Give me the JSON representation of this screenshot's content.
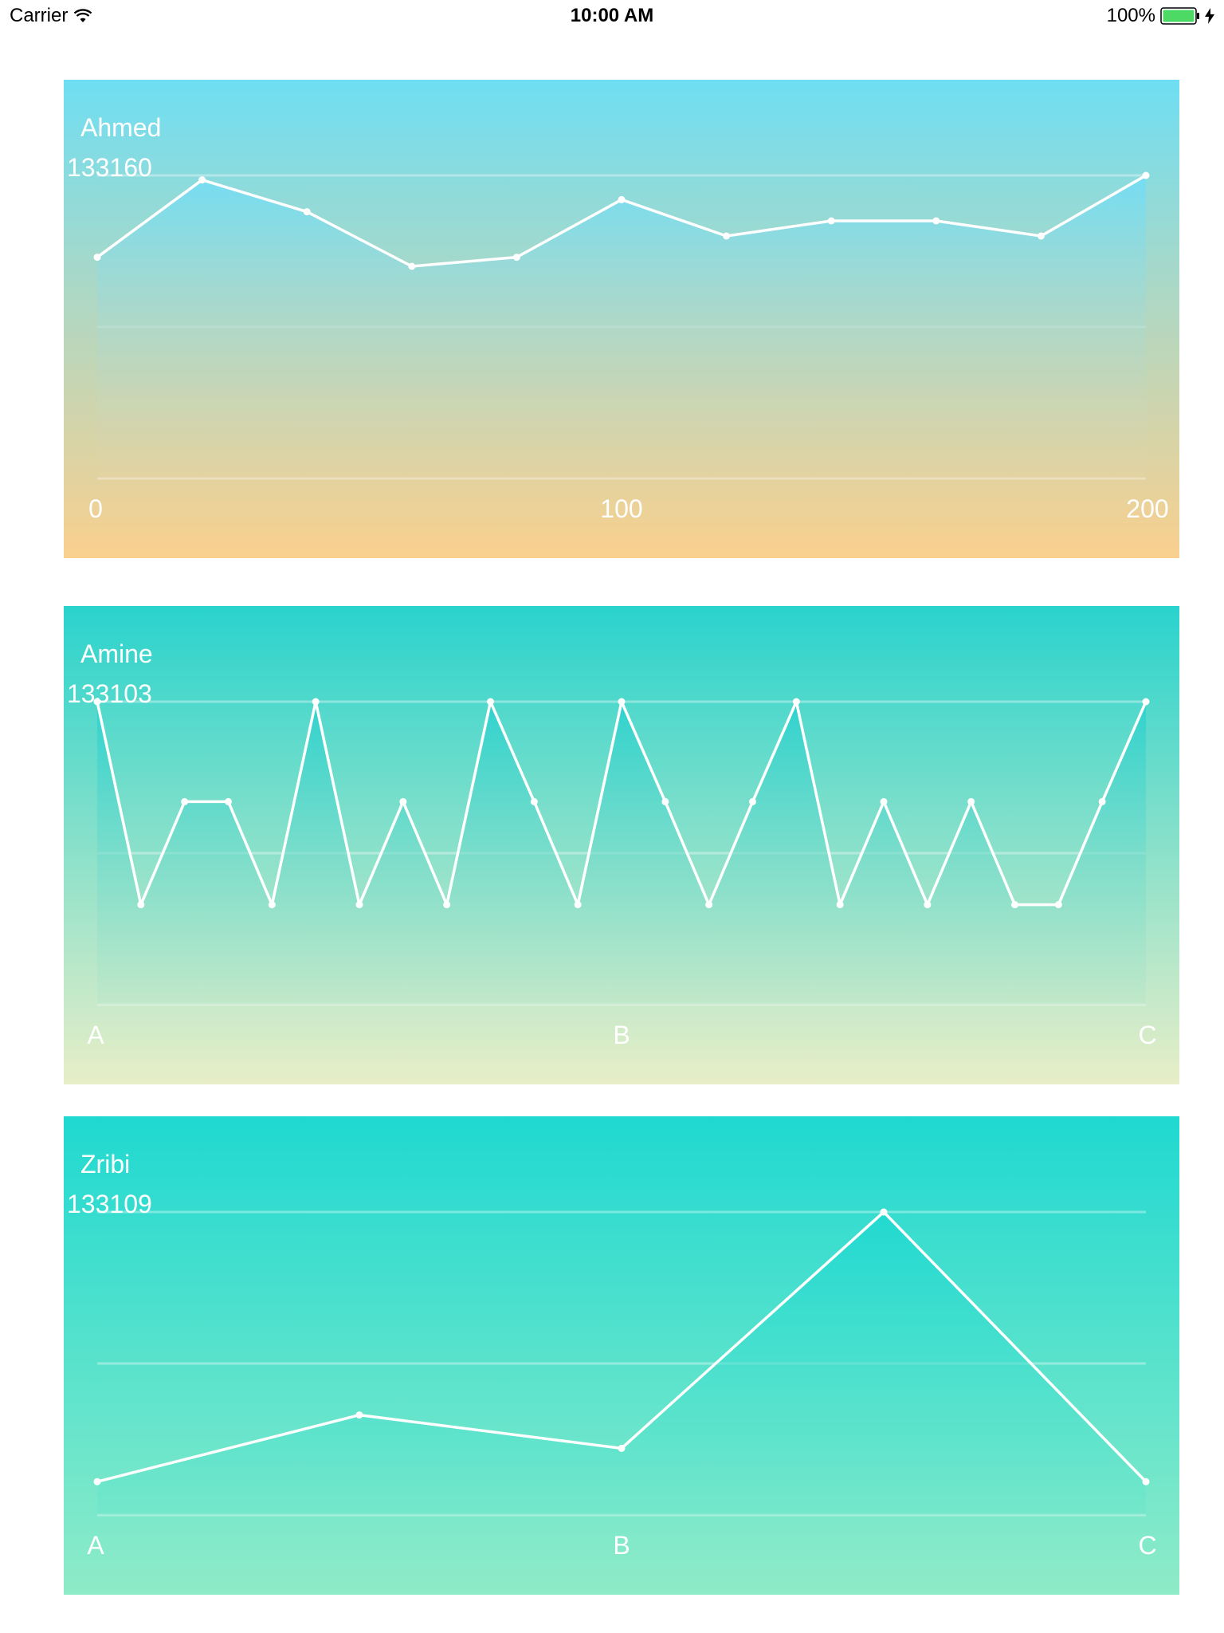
{
  "status_bar": {
    "carrier": "Carrier",
    "time": "10:00 AM",
    "battery": "100%"
  },
  "colors": {
    "line": "#ffffff",
    "grid": "rgba(255,255,255,0.35)"
  },
  "chart_data": [
    {
      "type": "line",
      "title": "Ahmed",
      "max_label": "133160",
      "x_tick_labels": [
        "0",
        "100",
        "200"
      ],
      "grid_lines": 3,
      "gradient": [
        "#6EDEF2",
        "#FAD08E"
      ],
      "area_gradient": [
        "#73DDF3",
        "#E4D4A6"
      ],
      "values": [
        0.73,
        0.985,
        0.88,
        0.7,
        0.73,
        0.92,
        0.8,
        0.85,
        0.85,
        0.8,
        1.0
      ]
    },
    {
      "type": "line",
      "title": "Amine",
      "max_label": "133103",
      "x_tick_labels": [
        "A",
        "B",
        "C"
      ],
      "grid_lines": 3,
      "gradient": [
        "#29D3CD",
        "#E8EEC8"
      ],
      "area_gradient": [
        "#2ED2CE",
        "#AEE3C8"
      ],
      "values": [
        1,
        0.33,
        0.67,
        0.67,
        0.33,
        1,
        0.33,
        0.67,
        0.33,
        1,
        0.67,
        0.33,
        1,
        0.67,
        0.33,
        0.67,
        1,
        0.33,
        0.67,
        0.33,
        0.67,
        0.33,
        0.33,
        0.67,
        1
      ]
    },
    {
      "type": "line",
      "title": "Zribi",
      "max_label": "133109",
      "x_tick_labels": [
        "A",
        "B",
        "C"
      ],
      "grid_lines": 3,
      "gradient": [
        "#1FD9D1",
        "#8FEBC8"
      ],
      "area_gradient": [
        "#20D9D1",
        "#5FE4CB"
      ],
      "values": [
        0.11,
        0.33,
        0.22,
        1.0,
        0.11
      ]
    }
  ]
}
